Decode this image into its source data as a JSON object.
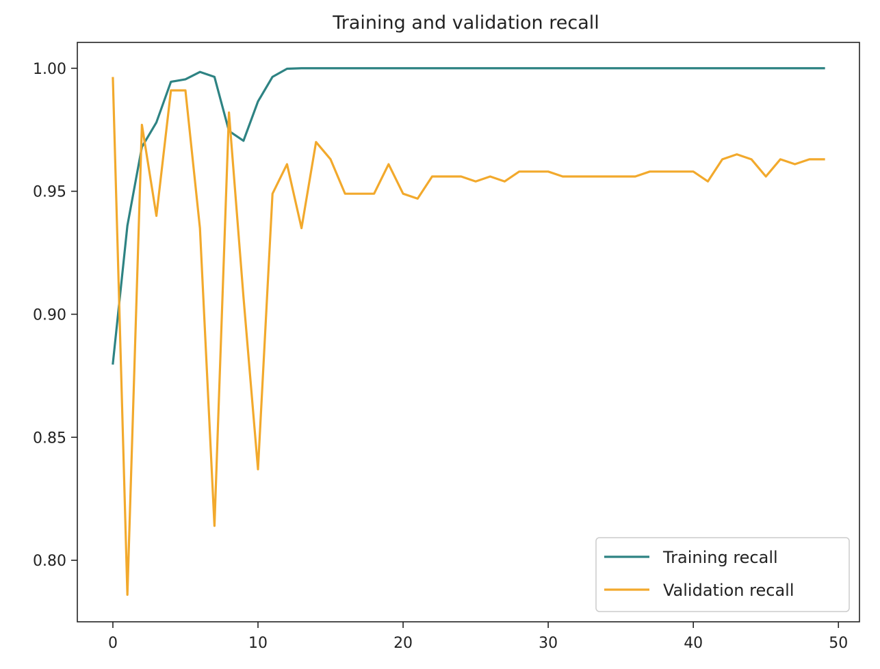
{
  "chart_data": {
    "type": "line",
    "title": "Training and validation recall",
    "xlabel": "",
    "ylabel": "",
    "xlim": [
      -2.45,
      51.45
    ],
    "ylim": [
      0.775,
      1.0105
    ],
    "x_ticks": [
      0,
      10,
      20,
      30,
      40,
      50
    ],
    "y_ticks": [
      0.8,
      0.85,
      0.9,
      0.95,
      1.0
    ],
    "y_tick_labels": [
      "0.80",
      "0.85",
      "0.90",
      "0.95",
      "1.00"
    ],
    "grid": false,
    "legend_position": "lower-right",
    "x": [
      0,
      1,
      2,
      3,
      4,
      5,
      6,
      7,
      8,
      9,
      10,
      11,
      12,
      13,
      14,
      15,
      16,
      17,
      18,
      19,
      20,
      21,
      22,
      23,
      24,
      25,
      26,
      27,
      28,
      29,
      30,
      31,
      32,
      33,
      34,
      35,
      36,
      37,
      38,
      39,
      40,
      41,
      42,
      43,
      44,
      45,
      46,
      47,
      48,
      49
    ],
    "series": [
      {
        "name": "Training recall",
        "color": "#2e8383",
        "values": [
          0.88,
          0.936,
          0.968,
          0.978,
          0.9945,
          0.9955,
          0.9985,
          0.9965,
          0.9745,
          0.9705,
          0.9865,
          0.9965,
          0.9998,
          1.0,
          1.0,
          1.0,
          1.0,
          1.0,
          1.0,
          1.0,
          1.0,
          1.0,
          1.0,
          1.0,
          1.0,
          1.0,
          1.0,
          1.0,
          1.0,
          1.0,
          1.0,
          1.0,
          1.0,
          1.0,
          1.0,
          1.0,
          1.0,
          1.0,
          1.0,
          1.0,
          1.0,
          1.0,
          1.0,
          1.0,
          1.0,
          1.0,
          1.0,
          1.0,
          1.0,
          1.0
        ]
      },
      {
        "name": "Validation recall",
        "color": "#f2a92c",
        "values": [
          0.996,
          0.786,
          0.977,
          0.94,
          0.991,
          0.991,
          0.935,
          0.814,
          0.982,
          0.907,
          0.837,
          0.949,
          0.961,
          0.935,
          0.97,
          0.963,
          0.949,
          0.949,
          0.949,
          0.961,
          0.949,
          0.947,
          0.956,
          0.956,
          0.956,
          0.954,
          0.956,
          0.954,
          0.958,
          0.958,
          0.958,
          0.956,
          0.956,
          0.956,
          0.956,
          0.956,
          0.956,
          0.958,
          0.958,
          0.958,
          0.958,
          0.954,
          0.963,
          0.965,
          0.963,
          0.956,
          0.963,
          0.961,
          0.963,
          0.963
        ]
      }
    ]
  }
}
